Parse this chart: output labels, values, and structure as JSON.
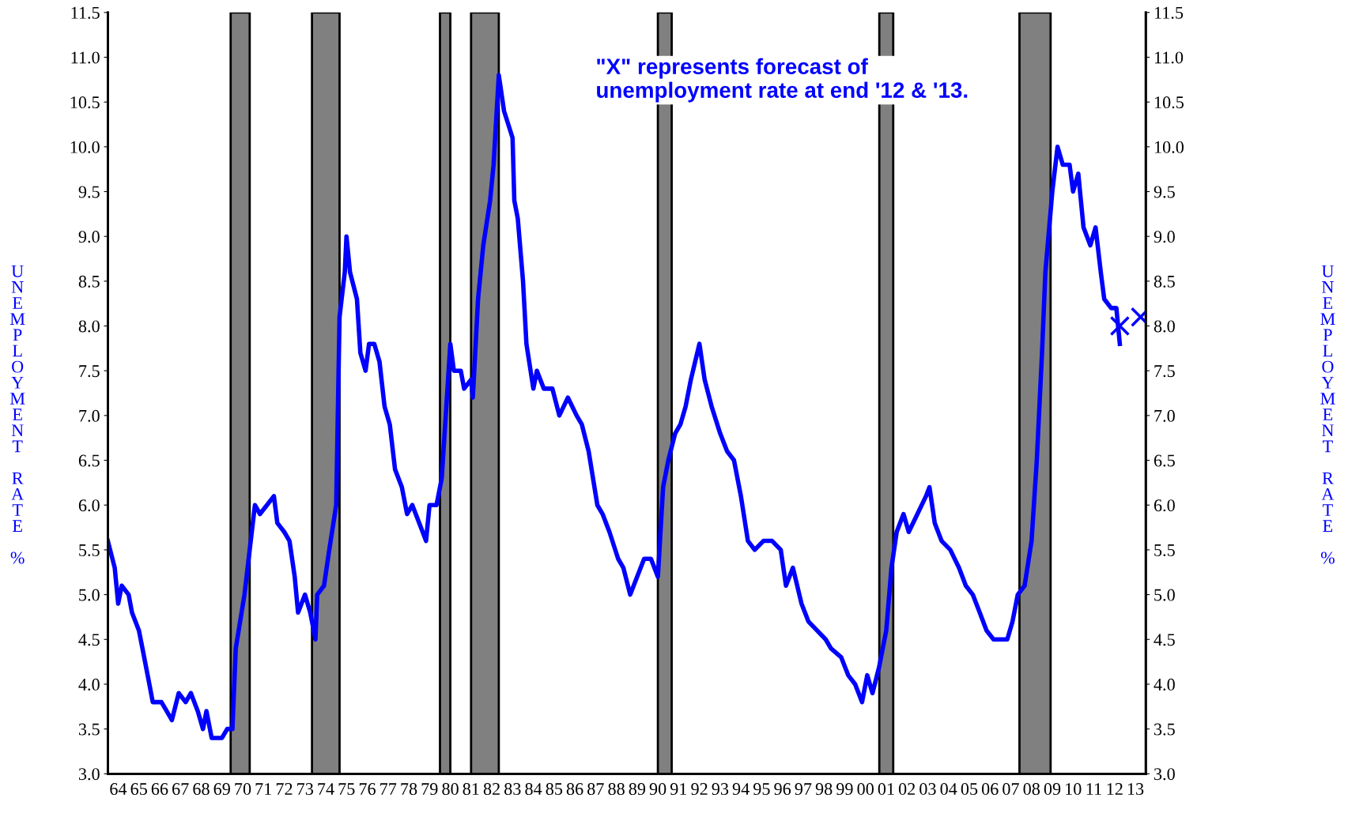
{
  "chart_data": {
    "type": "line",
    "xlim": [
      "1964-01",
      "2014-01"
    ],
    "xticks": [
      {
        "value": "1964-07",
        "label": "64"
      },
      {
        "value": "1965-07",
        "label": "65"
      },
      {
        "value": "1966-07",
        "label": "66"
      },
      {
        "value": "1967-07",
        "label": "67"
      },
      {
        "value": "1968-07",
        "label": "68"
      },
      {
        "value": "1969-07",
        "label": "69"
      },
      {
        "value": "1970-07",
        "label": "70"
      },
      {
        "value": "1971-07",
        "label": "71"
      },
      {
        "value": "1972-07",
        "label": "72"
      },
      {
        "value": "1973-07",
        "label": "73"
      },
      {
        "value": "1974-07",
        "label": "74"
      },
      {
        "value": "1975-07",
        "label": "75"
      },
      {
        "value": "1976-07",
        "label": "76"
      },
      {
        "value": "1977-07",
        "label": "77"
      },
      {
        "value": "1978-07",
        "label": "78"
      },
      {
        "value": "1979-07",
        "label": "79"
      },
      {
        "value": "1980-07",
        "label": "80"
      },
      {
        "value": "1981-07",
        "label": "81"
      },
      {
        "value": "1982-07",
        "label": "82"
      },
      {
        "value": "1983-07",
        "label": "83"
      },
      {
        "value": "1984-07",
        "label": "84"
      },
      {
        "value": "1985-07",
        "label": "85"
      },
      {
        "value": "1986-07",
        "label": "86"
      },
      {
        "value": "1987-07",
        "label": "87"
      },
      {
        "value": "1988-07",
        "label": "88"
      },
      {
        "value": "1989-07",
        "label": "89"
      },
      {
        "value": "1990-07",
        "label": "90"
      },
      {
        "value": "1991-07",
        "label": "91"
      },
      {
        "value": "1992-07",
        "label": "92"
      },
      {
        "value": "1993-07",
        "label": "93"
      },
      {
        "value": "1994-07",
        "label": "94"
      },
      {
        "value": "1995-07",
        "label": "95"
      },
      {
        "value": "1996-07",
        "label": "96"
      },
      {
        "value": "1997-07",
        "label": "97"
      },
      {
        "value": "1998-07",
        "label": "98"
      },
      {
        "value": "1999-07",
        "label": "99"
      },
      {
        "value": "2000-07",
        "label": "00"
      },
      {
        "value": "2001-07",
        "label": "01"
      },
      {
        "value": "2002-07",
        "label": "02"
      },
      {
        "value": "2003-07",
        "label": "03"
      },
      {
        "value": "2004-07",
        "label": "04"
      },
      {
        "value": "2005-07",
        "label": "05"
      },
      {
        "value": "2006-07",
        "label": "06"
      },
      {
        "value": "2007-07",
        "label": "07"
      },
      {
        "value": "2008-07",
        "label": "08"
      },
      {
        "value": "2009-07",
        "label": "09"
      },
      {
        "value": "2010-07",
        "label": "10"
      },
      {
        "value": "2011-07",
        "label": "11"
      },
      {
        "value": "2012-07",
        "label": "12"
      },
      {
        "value": "2013-07",
        "label": "13"
      }
    ],
    "ylim": [
      3.0,
      11.5
    ],
    "yticks": [
      {
        "value": 3.0,
        "label": "3.0"
      },
      {
        "value": 3.5,
        "label": "3.5"
      },
      {
        "value": 4.0,
        "label": "4.0"
      },
      {
        "value": 4.5,
        "label": "4.5"
      },
      {
        "value": 5.0,
        "label": "5.0"
      },
      {
        "value": 5.5,
        "label": "5.5"
      },
      {
        "value": 6.0,
        "label": "6.0"
      },
      {
        "value": 6.5,
        "label": "6.5"
      },
      {
        "value": 7.0,
        "label": "7.0"
      },
      {
        "value": 7.5,
        "label": "7.5"
      },
      {
        "value": 8.0,
        "label": "8.0"
      },
      {
        "value": 8.5,
        "label": "8.5"
      },
      {
        "value": 9.0,
        "label": "9.0"
      },
      {
        "value": 9.5,
        "label": "9.5"
      },
      {
        "value": 10.0,
        "label": "10.0"
      },
      {
        "value": 10.5,
        "label": "10.5"
      },
      {
        "value": 11.0,
        "label": "11.0"
      },
      {
        "value": 11.5,
        "label": "11.5"
      }
    ],
    "y2lim": [
      3.0,
      11.5
    ],
    "y2ticks": [
      {
        "value": 3.0,
        "label": "3.0"
      },
      {
        "value": 3.5,
        "label": "3.5"
      },
      {
        "value": 4.0,
        "label": "4.0"
      },
      {
        "value": 4.5,
        "label": "4.5"
      },
      {
        "value": 5.0,
        "label": "5.0"
      },
      {
        "value": 5.5,
        "label": "5.5"
      },
      {
        "value": 6.0,
        "label": "6.0"
      },
      {
        "value": 6.5,
        "label": "6.5"
      },
      {
        "value": 7.0,
        "label": "7.0"
      },
      {
        "value": 7.5,
        "label": "7.5"
      },
      {
        "value": 8.0,
        "label": "8.0"
      },
      {
        "value": 8.5,
        "label": "8.5"
      },
      {
        "value": 9.0,
        "label": "9.0"
      },
      {
        "value": 9.5,
        "label": "9.5"
      },
      {
        "value": 10.0,
        "label": "10.0"
      },
      {
        "value": 10.5,
        "label": "10.5"
      },
      {
        "value": 11.0,
        "label": "11.0"
      },
      {
        "value": 11.5,
        "label": "11.5"
      }
    ],
    "ylabel": "UNEMPLOYMENT RATE %",
    "y2label": "UNEMPLOYMENT RATE %",
    "grid": false,
    "legend": false,
    "annotations": [
      "\"X\" represents forecast of\nunemployment rate at end '12 & '13."
    ],
    "bands": [
      {
        "axis": "x",
        "from": "1969-12",
        "to": "1970-11",
        "color": "#808080"
      },
      {
        "axis": "x",
        "from": "1973-11",
        "to": "1975-03",
        "color": "#808080"
      },
      {
        "axis": "x",
        "from": "1980-01",
        "to": "1980-07",
        "color": "#808080"
      },
      {
        "axis": "x",
        "from": "1981-07",
        "to": "1982-11",
        "color": "#808080"
      },
      {
        "axis": "x",
        "from": "1990-07",
        "to": "1991-03",
        "color": "#808080"
      },
      {
        "axis": "x",
        "from": "2001-03",
        "to": "2001-11",
        "color": "#808080"
      },
      {
        "axis": "x",
        "from": "2007-12",
        "to": "2009-06",
        "color": "#808080"
      }
    ],
    "series": [
      {
        "color": "#0000ff",
        "marker": "none",
        "line_style": "solid",
        "x": [
          "1964-01",
          "1964-05",
          "1964-07",
          "1964-09",
          "1965-01",
          "1965-03",
          "1965-07",
          "1965-09",
          "1966-01",
          "1966-03",
          "1966-08",
          "1966-11",
          "1967-02",
          "1967-06",
          "1967-10",
          "1968-01",
          "1968-05",
          "1968-08",
          "1968-10",
          "1969-01",
          "1969-07",
          "1969-10",
          "1970-01",
          "1970-03",
          "1970-08",
          "1970-11",
          "1971-02",
          "1971-05",
          "1971-09",
          "1972-01",
          "1972-03",
          "1972-07",
          "1972-10",
          "1973-01",
          "1973-03",
          "1973-07",
          "1973-10",
          "1974-01",
          "1974-02",
          "1974-06",
          "1974-09",
          "1975-01",
          "1975-03",
          "1975-06",
          "1975-07",
          "1975-09",
          "1976-01",
          "1976-03",
          "1976-06",
          "1976-08",
          "1976-11",
          "1977-02",
          "1977-05",
          "1977-08",
          "1977-11",
          "1978-03",
          "1978-06",
          "1978-09",
          "1979-01",
          "1979-05",
          "1979-07",
          "1979-11",
          "1980-02",
          "1980-06",
          "1980-07",
          "1980-09",
          "1981-01",
          "1981-03",
          "1981-07",
          "1981-08",
          "1981-11",
          "1982-02",
          "1982-06",
          "1982-08",
          "1982-11",
          "1983-02",
          "1983-07",
          "1983-08",
          "1983-10",
          "1984-01",
          "1984-03",
          "1984-07",
          "1984-09",
          "1985-01",
          "1985-06",
          "1985-10",
          "1986-03",
          "1986-08",
          "1986-11",
          "1987-03",
          "1987-08",
          "1987-11",
          "1988-03",
          "1988-08",
          "1988-11",
          "1989-03",
          "1989-07",
          "1989-11",
          "1990-03",
          "1990-07",
          "1990-10",
          "1991-01",
          "1991-05",
          "1991-08",
          "1991-11",
          "1992-02",
          "1992-07",
          "1992-10",
          "1993-02",
          "1993-07",
          "1993-11",
          "1994-03",
          "1994-07",
          "1994-11",
          "1995-03",
          "1995-08",
          "1996-01",
          "1996-06",
          "1996-09",
          "1997-01",
          "1997-06",
          "1997-10",
          "1998-03",
          "1998-08",
          "1998-11",
          "1999-05",
          "1999-09",
          "2000-01",
          "2000-05",
          "2000-08",
          "2000-11",
          "2001-03",
          "2001-07",
          "2001-10",
          "2002-01",
          "2002-05",
          "2002-08",
          "2003-01",
          "2003-06",
          "2003-08",
          "2003-11",
          "2004-03",
          "2004-08",
          "2005-01",
          "2005-05",
          "2005-09",
          "2006-01",
          "2006-05",
          "2006-09",
          "2007-01",
          "2007-05",
          "2007-08",
          "2007-11",
          "2008-03",
          "2008-07",
          "2008-10",
          "2009-01",
          "2009-03",
          "2009-07",
          "2009-10",
          "2010-01",
          "2010-05",
          "2010-07",
          "2010-10",
          "2011-01",
          "2011-05",
          "2011-08",
          "2011-11",
          "2012-01",
          "2012-05",
          "2012-08",
          "2012-10"
        ],
        "values": [
          5.6,
          5.3,
          4.9,
          5.1,
          5.0,
          4.8,
          4.6,
          4.4,
          4.0,
          3.8,
          3.8,
          3.7,
          3.6,
          3.9,
          3.8,
          3.9,
          3.7,
          3.5,
          3.7,
          3.4,
          3.4,
          3.5,
          3.5,
          4.4,
          5.0,
          5.5,
          6.0,
          5.9,
          6.0,
          6.1,
          5.8,
          5.7,
          5.6,
          5.2,
          4.8,
          5.0,
          4.8,
          4.5,
          5.0,
          5.1,
          5.5,
          6.0,
          8.1,
          8.6,
          9.0,
          8.6,
          8.3,
          7.7,
          7.5,
          7.8,
          7.8,
          7.6,
          7.1,
          6.9,
          6.4,
          6.2,
          5.9,
          6.0,
          5.8,
          5.6,
          6.0,
          6.0,
          6.3,
          7.5,
          7.8,
          7.5,
          7.5,
          7.3,
          7.4,
          7.2,
          8.3,
          8.9,
          9.4,
          9.8,
          10.8,
          10.4,
          10.1,
          9.4,
          9.2,
          8.5,
          7.8,
          7.3,
          7.5,
          7.3,
          7.3,
          7.0,
          7.2,
          7.0,
          6.9,
          6.6,
          6.0,
          5.9,
          5.7,
          5.4,
          5.3,
          5.0,
          5.2,
          5.4,
          5.4,
          5.2,
          6.2,
          6.5,
          6.8,
          6.9,
          7.1,
          7.4,
          7.8,
          7.4,
          7.1,
          6.8,
          6.6,
          6.5,
          6.1,
          5.6,
          5.5,
          5.6,
          5.6,
          5.5,
          5.1,
          5.3,
          4.9,
          4.7,
          4.6,
          4.5,
          4.4,
          4.3,
          4.1,
          4.0,
          3.8,
          4.1,
          3.9,
          4.2,
          4.6,
          5.3,
          5.7,
          5.9,
          5.7,
          5.9,
          6.1,
          6.2,
          5.8,
          5.6,
          5.5,
          5.3,
          5.1,
          5.0,
          4.8,
          4.6,
          4.5,
          4.5,
          4.5,
          4.7,
          5.0,
          5.1,
          5.6,
          6.5,
          7.7,
          8.6,
          9.5,
          10.0,
          9.8,
          9.8,
          9.5,
          9.7,
          9.1,
          8.9,
          9.1,
          8.6,
          8.3,
          8.2,
          8.2,
          7.8
        ]
      },
      {
        "type": "scatter",
        "color": "#0000ff",
        "marker": "cross",
        "x": [
          "2012-10",
          "2013-10"
        ],
        "values": [
          8.0,
          8.1
        ]
      }
    ]
  }
}
